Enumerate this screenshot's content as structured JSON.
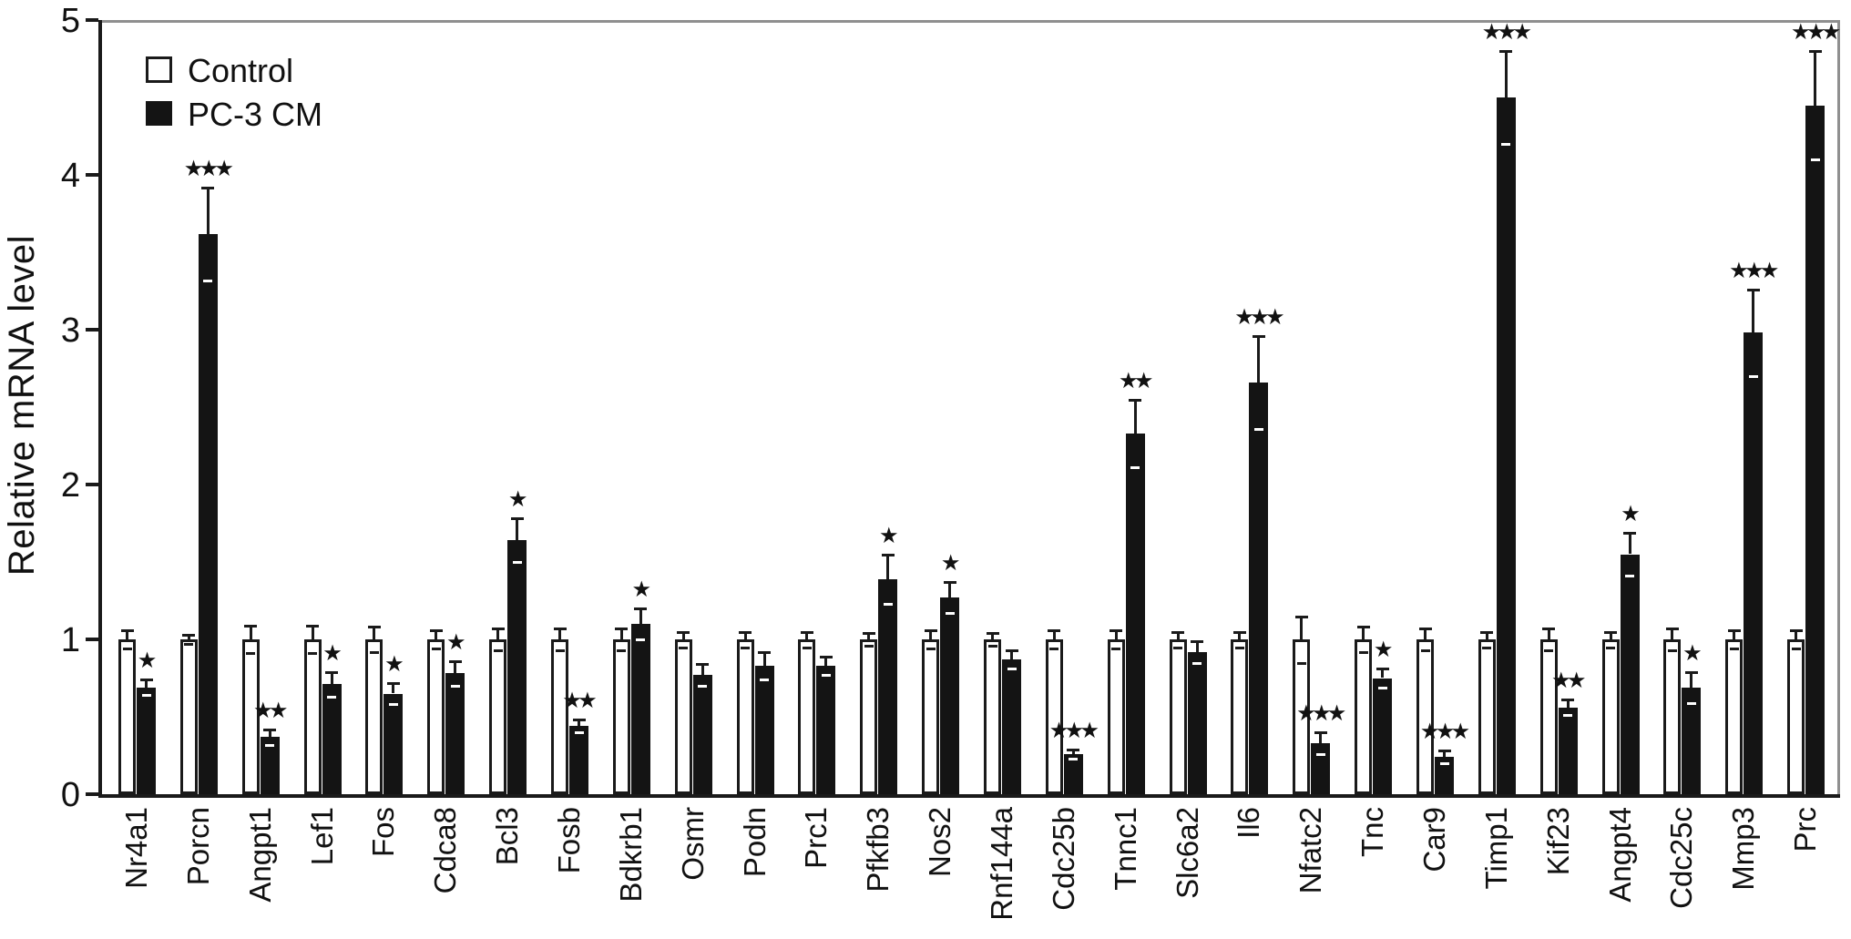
{
  "figure": {
    "ylabel": "Relative mRNA level",
    "legend": {
      "control_label": "Control",
      "treatment_label": "PC-3 CM"
    }
  },
  "chart_data": {
    "type": "bar",
    "title": "",
    "xlabel": "",
    "ylabel": "Relative mRNA level",
    "ylim": [
      0,
      5
    ],
    "yticks": [
      0,
      1,
      2,
      3,
      4,
      5
    ],
    "grid": false,
    "legend_position": "top-left",
    "legend": [
      "Control",
      "PC-3 CM"
    ],
    "colors": {
      "Control": "#ffffff",
      "PC-3 CM": "#141414"
    },
    "significance_symbol": "star",
    "categories": [
      "Nr4a1",
      "Porcn",
      "Angpt1",
      "Lef1",
      "Fos",
      "Cdca8",
      "Bcl3",
      "Fosb",
      "Bdkrb1",
      "Osmr",
      "Podn",
      "Prc1",
      "Pfkfb3",
      "Nos2",
      "Rnf144a",
      "Cdc25b",
      "Tnnc1",
      "Slc6a2",
      "Il6",
      "Nfatc2",
      "Tnc",
      "Car9",
      "Timp1",
      "Kif23",
      "Angpt4",
      "Cdc25c",
      "Mmp3",
      "Prc"
    ],
    "series": [
      {
        "name": "Control",
        "fill": "#ffffff",
        "values": [
          1.0,
          1.0,
          1.0,
          1.0,
          1.0,
          1.0,
          1.0,
          1.0,
          1.0,
          1.0,
          1.0,
          1.0,
          1.0,
          1.0,
          1.0,
          1.0,
          1.0,
          1.0,
          1.0,
          1.0,
          1.0,
          1.0,
          1.0,
          1.0,
          1.0,
          1.0,
          1.0,
          1.0
        ],
        "errors": [
          0.06,
          0.03,
          0.09,
          0.09,
          0.08,
          0.06,
          0.07,
          0.07,
          0.07,
          0.05,
          0.05,
          0.05,
          0.04,
          0.06,
          0.04,
          0.06,
          0.06,
          0.05,
          0.05,
          0.15,
          0.08,
          0.07,
          0.05,
          0.07,
          0.05,
          0.07,
          0.06,
          0.06
        ]
      },
      {
        "name": "PC-3 CM",
        "fill": "#141414",
        "values": [
          0.69,
          3.62,
          0.37,
          0.71,
          0.65,
          0.78,
          1.64,
          0.44,
          1.1,
          0.77,
          0.83,
          0.83,
          1.39,
          1.27,
          0.87,
          0.26,
          2.33,
          0.92,
          2.66,
          0.33,
          0.75,
          0.24,
          4.5,
          0.56,
          1.55,
          0.69,
          2.98,
          4.45
        ],
        "errors": [
          0.05,
          0.3,
          0.05,
          0.08,
          0.07,
          0.08,
          0.14,
          0.04,
          0.1,
          0.07,
          0.09,
          0.06,
          0.16,
          0.1,
          0.06,
          0.03,
          0.22,
          0.07,
          0.3,
          0.07,
          0.06,
          0.04,
          0.3,
          0.05,
          0.14,
          0.1,
          0.28,
          0.35
        ],
        "significance": [
          "*",
          "***",
          "**",
          "*",
          "*",
          "*",
          "*",
          "**",
          "*",
          "",
          "",
          "",
          "*",
          "*",
          "",
          "***",
          "**",
          "",
          "***",
          "***",
          "*",
          "***",
          "***",
          "**",
          "*",
          "*",
          "***",
          "***"
        ]
      }
    ]
  }
}
